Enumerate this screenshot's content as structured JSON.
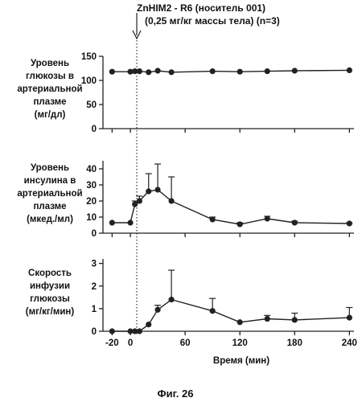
{
  "header": {
    "line1": "ZnHIM2 - R6 (носитель 001)",
    "line2": "(0,25 мг/кг массы тела) (n=3)"
  },
  "xlabel": "Время (мин)",
  "caption": "Фиг. 26",
  "chart_data": [
    {
      "type": "line",
      "ylabel": [
        "Уровень",
        "глюкозы в",
        "артериальной",
        "плазме",
        "(мг/дл)"
      ],
      "ylim": [
        0,
        150
      ],
      "yticks": [
        0,
        50,
        100,
        150
      ],
      "xlim": [
        -30,
        245
      ],
      "xticks": [
        -20,
        0,
        60,
        120,
        180,
        240
      ],
      "x": [
        -20,
        0,
        5,
        10,
        20,
        30,
        45,
        90,
        120,
        150,
        180,
        240
      ],
      "values": [
        118,
        118,
        119,
        119,
        117,
        120,
        117,
        119,
        118,
        119,
        120,
        121
      ],
      "errors": [
        0,
        0,
        0,
        0,
        0,
        0,
        0,
        0,
        0,
        0,
        0,
        0
      ]
    },
    {
      "type": "line",
      "ylabel": [
        "Уровень",
        "инсулина в",
        "артериальной",
        "плазме",
        "(мкед./мл)"
      ],
      "ylim": [
        0,
        45
      ],
      "yticks": [
        0,
        10,
        20,
        30,
        40
      ],
      "xlim": [
        -30,
        245
      ],
      "xticks": [
        -20,
        0,
        60,
        120,
        180,
        240
      ],
      "x": [
        -20,
        0,
        5,
        10,
        20,
        30,
        45,
        90,
        120,
        150,
        180,
        240
      ],
      "values": [
        6.5,
        6.5,
        18,
        20,
        26,
        27,
        20,
        8.5,
        5.5,
        9,
        6.5,
        6
      ],
      "errors": [
        0,
        0,
        2,
        3,
        11,
        16,
        15,
        1.5,
        1,
        1.5,
        1,
        0.5
      ]
    },
    {
      "type": "line",
      "ylabel": [
        "Скорость",
        "инфузии",
        "глюкозы",
        "(мг/кг/мин)"
      ],
      "ylim": [
        0,
        3.2
      ],
      "yticks": [
        0,
        1,
        2,
        3
      ],
      "xlim": [
        -30,
        245
      ],
      "xticks": [
        -20,
        0,
        60,
        120,
        180,
        240
      ],
      "xticklabels": [
        "-20",
        "0",
        "60",
        "120",
        "180",
        "240"
      ],
      "x": [
        -20,
        0,
        5,
        10,
        20,
        30,
        45,
        90,
        120,
        150,
        180,
        240
      ],
      "values": [
        0,
        0,
        0,
        0,
        0.3,
        0.95,
        1.4,
        0.9,
        0.4,
        0.55,
        0.5,
        0.6
      ],
      "errors": [
        0,
        0,
        0,
        0,
        0,
        0.2,
        1.3,
        0.55,
        0,
        0.15,
        0.3,
        0.45
      ]
    }
  ]
}
